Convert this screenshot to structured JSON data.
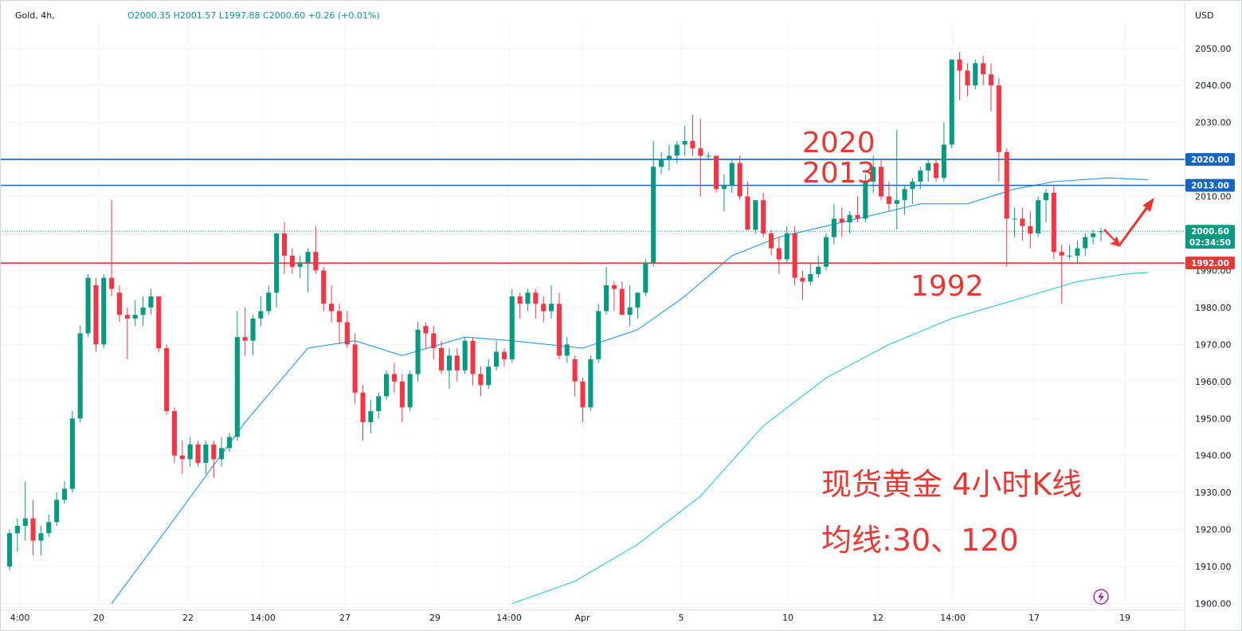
{
  "header": {
    "symbol": "Gold, 4h,",
    "ohlc": "O2000.35  H2001.57  L1997.88  C2000.60  +0.26 (+0.01%)",
    "currency": "USD"
  },
  "colors": {
    "up": "#089981",
    "down": "#f23645",
    "ma30": "#2196f3",
    "ma120": "#26c6da",
    "resistance": "#1565c0",
    "support": "#e53935",
    "annotation": "#e53935",
    "price_badge": "#089981"
  },
  "price_badge": {
    "price": "2000.60",
    "countdown": "02:34:50"
  },
  "level_badges": [
    "2020.00",
    "2013.00",
    "1992.00"
  ],
  "annotations": {
    "level_2020": "2020",
    "level_2013": "2013",
    "level_1992": "1992",
    "title_line1": "现货黄金 4小时K线",
    "title_line2": "均线:30、120"
  },
  "icons": {
    "flash": "lightning-icon",
    "arrow_up": "red-arrow-up-icon",
    "arrow_down": "red-arrow-down-icon"
  },
  "chart_data": {
    "type": "candlestick",
    "timeframe": "4h",
    "ylim": [
      1897,
      2062
    ],
    "y_ticks": [
      1900,
      1910,
      1920,
      1930,
      1940,
      1950,
      1960,
      1970,
      1980,
      1990,
      2000,
      2010,
      2020,
      2030,
      2040,
      2050
    ],
    "x_ticks": [
      "4:00",
      "20",
      "22",
      "14:00",
      "27",
      "29",
      "14:00",
      "Apr",
      "5",
      "10",
      "12",
      "14:00",
      "17",
      "19"
    ],
    "horizontal_levels": [
      {
        "value": 2020,
        "label": "2020.00",
        "role": "resistance"
      },
      {
        "value": 2013,
        "label": "2013.00",
        "role": "resistance"
      },
      {
        "value": 1992,
        "label": "1992.00",
        "role": "support"
      }
    ],
    "candles": [
      {
        "o": 1910,
        "h": 1920,
        "l": 1909,
        "c": 1919
      },
      {
        "o": 1919,
        "h": 1923,
        "l": 1914,
        "c": 1921
      },
      {
        "o": 1921,
        "h": 1933,
        "l": 1917,
        "c": 1923
      },
      {
        "o": 1923,
        "h": 1928,
        "l": 1913,
        "c": 1917
      },
      {
        "o": 1917,
        "h": 1921,
        "l": 1913,
        "c": 1919
      },
      {
        "o": 1919,
        "h": 1924,
        "l": 1918,
        "c": 1922
      },
      {
        "o": 1922,
        "h": 1930,
        "l": 1921,
        "c": 1928
      },
      {
        "o": 1928,
        "h": 1933,
        "l": 1927,
        "c": 1931
      },
      {
        "o": 1931,
        "h": 1952,
        "l": 1930,
        "c": 1950
      },
      {
        "o": 1950,
        "h": 1975,
        "l": 1949,
        "c": 1973
      },
      {
        "o": 1973,
        "h": 1989,
        "l": 1972,
        "c": 1988
      },
      {
        "o": 1986,
        "h": 1988,
        "l": 1968,
        "c": 1970
      },
      {
        "o": 1970,
        "h": 1989,
        "l": 1969,
        "c": 1988
      },
      {
        "o": 1988,
        "h": 2009,
        "l": 1983,
        "c": 1985
      },
      {
        "o": 1984,
        "h": 1986,
        "l": 1976,
        "c": 1978
      },
      {
        "o": 1978,
        "h": 1980,
        "l": 1966,
        "c": 1977
      },
      {
        "o": 1977,
        "h": 1982,
        "l": 1975,
        "c": 1978
      },
      {
        "o": 1978,
        "h": 1983,
        "l": 1975,
        "c": 1980
      },
      {
        "o": 1980,
        "h": 1985,
        "l": 1978,
        "c": 1983
      },
      {
        "o": 1983,
        "h": 1983,
        "l": 1968,
        "c": 1969
      },
      {
        "o": 1969,
        "h": 1970,
        "l": 1951,
        "c": 1952
      },
      {
        "o": 1952,
        "h": 1953,
        "l": 1938,
        "c": 1940
      },
      {
        "o": 1940,
        "h": 1944,
        "l": 1935,
        "c": 1939
      },
      {
        "o": 1939,
        "h": 1945,
        "l": 1937,
        "c": 1943
      },
      {
        "o": 1943,
        "h": 1944,
        "l": 1937,
        "c": 1938
      },
      {
        "o": 1938,
        "h": 1944,
        "l": 1935,
        "c": 1943
      },
      {
        "o": 1943,
        "h": 1944,
        "l": 1934,
        "c": 1939
      },
      {
        "o": 1939,
        "h": 1945,
        "l": 1937,
        "c": 1942
      },
      {
        "o": 1942,
        "h": 1946,
        "l": 1941,
        "c": 1945
      },
      {
        "o": 1945,
        "h": 1979,
        "l": 1944,
        "c": 1972
      },
      {
        "o": 1972,
        "h": 1980,
        "l": 1967,
        "c": 1971
      },
      {
        "o": 1971,
        "h": 1978,
        "l": 1967,
        "c": 1977
      },
      {
        "o": 1977,
        "h": 1983,
        "l": 1975,
        "c": 1979
      },
      {
        "o": 1979,
        "h": 1986,
        "l": 1978,
        "c": 1984
      },
      {
        "o": 1984,
        "h": 2000,
        "l": 1980,
        "c": 2000
      },
      {
        "o": 2000,
        "h": 2003,
        "l": 1989,
        "c": 1994
      },
      {
        "o": 1994,
        "h": 1996,
        "l": 1989,
        "c": 1991
      },
      {
        "o": 1991,
        "h": 1994,
        "l": 1988,
        "c": 1992
      },
      {
        "o": 1992,
        "h": 1996,
        "l": 1984,
        "c": 1995
      },
      {
        "o": 1995,
        "h": 2002,
        "l": 1989,
        "c": 1990
      },
      {
        "o": 1990,
        "h": 1991,
        "l": 1979,
        "c": 1981
      },
      {
        "o": 1981,
        "h": 1986,
        "l": 1976,
        "c": 1979
      },
      {
        "o": 1979,
        "h": 1981,
        "l": 1970,
        "c": 1976
      },
      {
        "o": 1976,
        "h": 1979,
        "l": 1969,
        "c": 1970
      },
      {
        "o": 1970,
        "h": 1973,
        "l": 1954,
        "c": 1957
      },
      {
        "o": 1957,
        "h": 1959,
        "l": 1944,
        "c": 1949
      },
      {
        "o": 1949,
        "h": 1955,
        "l": 1946,
        "c": 1952
      },
      {
        "o": 1952,
        "h": 1957,
        "l": 1950,
        "c": 1956
      },
      {
        "o": 1956,
        "h": 1963,
        "l": 1955,
        "c": 1962
      },
      {
        "o": 1962,
        "h": 1965,
        "l": 1957,
        "c": 1960
      },
      {
        "o": 1960,
        "h": 1962,
        "l": 1949,
        "c": 1953
      },
      {
        "o": 1953,
        "h": 1963,
        "l": 1952,
        "c": 1962
      },
      {
        "o": 1962,
        "h": 1976,
        "l": 1960,
        "c": 1974
      },
      {
        "o": 1975,
        "h": 1976,
        "l": 1969,
        "c": 1973
      },
      {
        "o": 1973,
        "h": 1975,
        "l": 1966,
        "c": 1969
      },
      {
        "o": 1969,
        "h": 1971,
        "l": 1962,
        "c": 1963
      },
      {
        "o": 1963,
        "h": 1969,
        "l": 1958,
        "c": 1967
      },
      {
        "o": 1967,
        "h": 1969,
        "l": 1960,
        "c": 1963
      },
      {
        "o": 1963,
        "h": 1972,
        "l": 1962,
        "c": 1971
      },
      {
        "o": 1971,
        "h": 1972,
        "l": 1959,
        "c": 1962
      },
      {
        "o": 1962,
        "h": 1964,
        "l": 1956,
        "c": 1959
      },
      {
        "o": 1959,
        "h": 1966,
        "l": 1958,
        "c": 1964
      },
      {
        "o": 1964,
        "h": 1971,
        "l": 1963,
        "c": 1968
      },
      {
        "o": 1968,
        "h": 1969,
        "l": 1964,
        "c": 1966
      },
      {
        "o": 1966,
        "h": 1985,
        "l": 1965,
        "c": 1983
      },
      {
        "o": 1983,
        "h": 1984,
        "l": 1977,
        "c": 1981
      },
      {
        "o": 1981,
        "h": 1985,
        "l": 1979,
        "c": 1984
      },
      {
        "o": 1984,
        "h": 1985,
        "l": 1977,
        "c": 1981
      },
      {
        "o": 1981,
        "h": 1983,
        "l": 1976,
        "c": 1979
      },
      {
        "o": 1979,
        "h": 1986,
        "l": 1977,
        "c": 1981
      },
      {
        "o": 1981,
        "h": 1984,
        "l": 1966,
        "c": 1967
      },
      {
        "o": 1967,
        "h": 1972,
        "l": 1965,
        "c": 1970
      },
      {
        "o": 1966,
        "h": 1967,
        "l": 1956,
        "c": 1960
      },
      {
        "o": 1960,
        "h": 1961,
        "l": 1949,
        "c": 1953
      },
      {
        "o": 1953,
        "h": 1967,
        "l": 1952,
        "c": 1966
      },
      {
        "o": 1966,
        "h": 1981,
        "l": 1965,
        "c": 1979
      },
      {
        "o": 1979,
        "h": 1991,
        "l": 1978,
        "c": 1986
      },
      {
        "o": 1986,
        "h": 1987,
        "l": 1979,
        "c": 1985
      },
      {
        "o": 1985,
        "h": 1987,
        "l": 1978,
        "c": 1978
      },
      {
        "o": 1978,
        "h": 1986,
        "l": 1975,
        "c": 1980
      },
      {
        "o": 1980,
        "h": 1984,
        "l": 1977,
        "c": 1984
      },
      {
        "o": 1984,
        "h": 1993,
        "l": 1983,
        "c": 1992
      },
      {
        "o": 1992,
        "h": 2025,
        "l": 1991,
        "c": 2018
      },
      {
        "o": 2018,
        "h": 2022,
        "l": 2016,
        "c": 2020
      },
      {
        "o": 2020,
        "h": 2024,
        "l": 2017,
        "c": 2021
      },
      {
        "o": 2021,
        "h": 2025,
        "l": 2019,
        "c": 2024
      },
      {
        "o": 2024,
        "h": 2029,
        "l": 2021,
        "c": 2025
      },
      {
        "o": 2025,
        "h": 2032,
        "l": 2021,
        "c": 2023
      },
      {
        "o": 2023,
        "h": 2031,
        "l": 2010,
        "c": 2021
      },
      {
        "o": 2021,
        "h": 2022,
        "l": 2020,
        "c": 2021
      },
      {
        "o": 2021,
        "h": 2021,
        "l": 2011,
        "c": 2012
      },
      {
        "o": 2012,
        "h": 2016,
        "l": 2006,
        "c": 2013
      },
      {
        "o": 2013,
        "h": 2020,
        "l": 2011,
        "c": 2019
      },
      {
        "o": 2019,
        "h": 2021,
        "l": 2009,
        "c": 2010
      },
      {
        "o": 2010,
        "h": 2014,
        "l": 2002,
        "c": 2001
      },
      {
        "o": 2001,
        "h": 2009,
        "l": 2000,
        "c": 2009
      },
      {
        "o": 2009,
        "h": 2011,
        "l": 1999,
        "c": 2000
      },
      {
        "o": 2000,
        "h": 2001,
        "l": 1994,
        "c": 1996
      },
      {
        "o": 1996,
        "h": 1999,
        "l": 1989,
        "c": 1993
      },
      {
        "o": 1993,
        "h": 2002,
        "l": 1992,
        "c": 2000
      },
      {
        "o": 2000,
        "h": 2002,
        "l": 1986,
        "c": 1988
      },
      {
        "o": 1988,
        "h": 1990,
        "l": 1982,
        "c": 1987
      },
      {
        "o": 1987,
        "h": 1992,
        "l": 1986,
        "c": 1989
      },
      {
        "o": 1989,
        "h": 1994,
        "l": 1988,
        "c": 1991
      },
      {
        "o": 1991,
        "h": 2000,
        "l": 1990,
        "c": 1999
      },
      {
        "o": 1999,
        "h": 2008,
        "l": 1997,
        "c": 2004
      },
      {
        "o": 2004,
        "h": 2007,
        "l": 1999,
        "c": 2003
      },
      {
        "o": 2003,
        "h": 2006,
        "l": 2000,
        "c": 2005
      },
      {
        "o": 2005,
        "h": 2010,
        "l": 2003,
        "c": 2004
      },
      {
        "o": 2004,
        "h": 2016,
        "l": 2003,
        "c": 2014
      },
      {
        "o": 2014,
        "h": 2021,
        "l": 2011,
        "c": 2018
      },
      {
        "o": 2018,
        "h": 2020,
        "l": 2009,
        "c": 2010
      },
      {
        "o": 2010,
        "h": 2014,
        "l": 2006,
        "c": 2008
      },
      {
        "o": 2008,
        "h": 2028,
        "l": 2001,
        "c": 2009
      },
      {
        "o": 2009,
        "h": 2013,
        "l": 2005,
        "c": 2012
      },
      {
        "o": 2012,
        "h": 2015,
        "l": 2008,
        "c": 2014
      },
      {
        "o": 2014,
        "h": 2018,
        "l": 2012,
        "c": 2017
      },
      {
        "o": 2017,
        "h": 2020,
        "l": 2014,
        "c": 2019
      },
      {
        "o": 2019,
        "h": 2020,
        "l": 2014,
        "c": 2015
      },
      {
        "o": 2015,
        "h": 2030,
        "l": 2014,
        "c": 2024
      },
      {
        "o": 2024,
        "h": 2047,
        "l": 2023,
        "c": 2047
      },
      {
        "o": 2047,
        "h": 2049,
        "l": 2036,
        "c": 2044
      },
      {
        "o": 2044,
        "h": 2046,
        "l": 2037,
        "c": 2040
      },
      {
        "o": 2040,
        "h": 2047,
        "l": 2039,
        "c": 2046
      },
      {
        "o": 2046,
        "h": 2048,
        "l": 2040,
        "c": 2043
      },
      {
        "o": 2043,
        "h": 2046,
        "l": 2033,
        "c": 2040
      },
      {
        "o": 2040,
        "h": 2042,
        "l": 2014,
        "c": 2022
      },
      {
        "o": 2022,
        "h": 2023,
        "l": 1991,
        "c": 2004
      },
      {
        "o": 2004,
        "h": 2007,
        "l": 1999,
        "c": 2004
      },
      {
        "o": 2004,
        "h": 2007,
        "l": 1998,
        "c": 2002
      },
      {
        "o": 2002,
        "h": 2006,
        "l": 1996,
        "c": 2000
      },
      {
        "o": 2000,
        "h": 2010,
        "l": 1999,
        "c": 2009
      },
      {
        "o": 2009,
        "h": 2012,
        "l": 2003,
        "c": 2011
      },
      {
        "o": 2011,
        "h": 2013,
        "l": 1993,
        "c": 1995
      },
      {
        "o": 1995,
        "h": 1997,
        "l": 1981,
        "c": 1994
      },
      {
        "o": 1994,
        "h": 1997,
        "l": 1993,
        "c": 1994
      },
      {
        "o": 1994,
        "h": 1998,
        "l": 1992,
        "c": 1996
      },
      {
        "o": 1996,
        "h": 2000,
        "l": 1994,
        "c": 1999
      },
      {
        "o": 1999,
        "h": 2001,
        "l": 1997,
        "c": 2000
      },
      {
        "o": 2000.35,
        "h": 2001.57,
        "l": 1997.88,
        "c": 2000.6
      }
    ],
    "ma30": [
      {
        "i": 13,
        "v": 1900
      },
      {
        "i": 20,
        "v": 1920
      },
      {
        "i": 30,
        "v": 1949
      },
      {
        "i": 38,
        "v": 1969
      },
      {
        "i": 44,
        "v": 1971
      },
      {
        "i": 50,
        "v": 1967
      },
      {
        "i": 58,
        "v": 1972
      },
      {
        "i": 64,
        "v": 1971
      },
      {
        "i": 73,
        "v": 1969
      },
      {
        "i": 80,
        "v": 1974
      },
      {
        "i": 86,
        "v": 1983
      },
      {
        "i": 92,
        "v": 1994
      },
      {
        "i": 98,
        "v": 1999
      },
      {
        "i": 104,
        "v": 2002
      },
      {
        "i": 110,
        "v": 2005
      },
      {
        "i": 116,
        "v": 2008
      },
      {
        "i": 122,
        "v": 2008
      },
      {
        "i": 128,
        "v": 2012
      },
      {
        "i": 133,
        "v": 2014
      },
      {
        "i": 140,
        "v": 2015
      },
      {
        "i": 145,
        "v": 2014.5
      }
    ],
    "ma120": [
      {
        "i": 64,
        "v": 1900
      },
      {
        "i": 72,
        "v": 1906
      },
      {
        "i": 80,
        "v": 1916
      },
      {
        "i": 88,
        "v": 1929
      },
      {
        "i": 96,
        "v": 1948
      },
      {
        "i": 104,
        "v": 1961
      },
      {
        "i": 112,
        "v": 1970
      },
      {
        "i": 120,
        "v": 1977
      },
      {
        "i": 128,
        "v": 1982
      },
      {
        "i": 136,
        "v": 1987
      },
      {
        "i": 142,
        "v": 1989
      },
      {
        "i": 145,
        "v": 1989.5
      }
    ]
  }
}
